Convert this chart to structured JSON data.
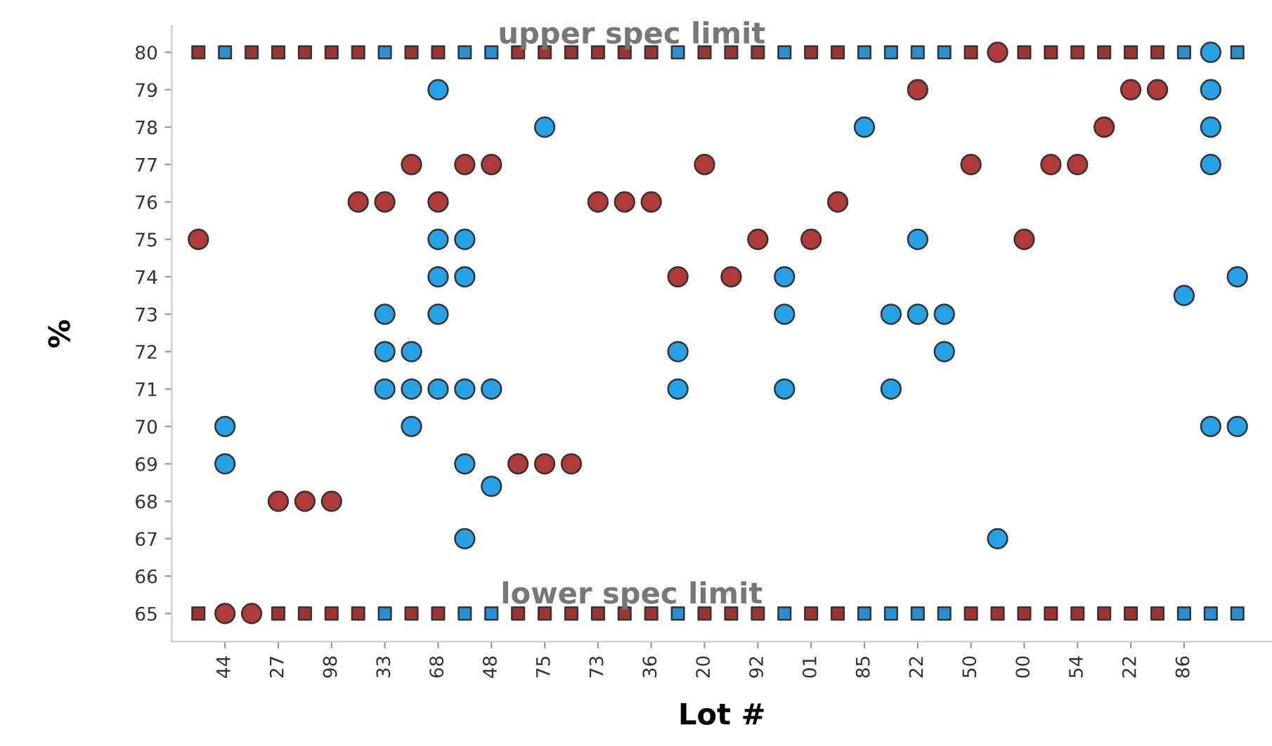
{
  "chart_data": {
    "type": "scatter",
    "xlabel": "Lot #",
    "ylabel": "%",
    "categories": [
      null,
      "44",
      null,
      "27",
      null,
      "98",
      null,
      "33",
      null,
      "68",
      null,
      "48",
      null,
      "75",
      null,
      "73",
      null,
      "36",
      null,
      "20",
      null,
      "92",
      null,
      "01",
      null,
      "85",
      null,
      "22",
      null,
      "50",
      null,
      "00",
      null,
      "54",
      null,
      "22",
      null,
      "86",
      null,
      null
    ],
    "ylim": [
      64.25,
      80.7
    ],
    "yticks": [
      65,
      66,
      67,
      68,
      69,
      70,
      71,
      72,
      73,
      74,
      75,
      76,
      77,
      78,
      79,
      80
    ],
    "grid": false,
    "annotations": [
      "upper spec limit",
      "lower spec limit"
    ],
    "series": [
      {
        "marker": "square",
        "values": [
          80,
          80,
          80,
          80,
          80,
          80,
          80,
          80,
          80,
          80,
          80,
          80,
          80,
          80,
          80,
          80,
          80,
          80,
          80,
          80,
          80,
          80,
          80,
          80,
          80,
          80,
          80,
          80,
          80,
          80,
          null,
          80,
          80,
          80,
          80,
          80,
          80,
          80,
          null,
          80
        ],
        "colors": [
          "#9e3535",
          "#2a8fd0",
          "#9e3535",
          "#9e3535",
          "#9e3535",
          "#9e3535",
          "#9e3535",
          "#2a8fd0",
          "#9e3535",
          "#9e3535",
          "#2a8fd0",
          "#2a8fd0",
          "#9e3535",
          "#9e3535",
          "#9e3535",
          "#9e3535",
          "#9e3535",
          "#9e3535",
          "#2a8fd0",
          "#9e3535",
          "#9e3535",
          "#9e3535",
          "#2a8fd0",
          "#9e3535",
          "#9e3535",
          "#2a8fd0",
          "#2a8fd0",
          "#2a8fd0",
          "#2a8fd0",
          "#9e3535",
          "#9e3535",
          "#9e3535",
          "#9e3535",
          "#9e3535",
          "#9e3535",
          "#9e3535",
          "#9e3535",
          "#2a8fd0",
          "#2a8fd0",
          "#2a8fd0"
        ]
      },
      {
        "marker": "square",
        "values": [
          65,
          null,
          null,
          65,
          65,
          65,
          65,
          65,
          65,
          65,
          65,
          65,
          65,
          65,
          65,
          65,
          65,
          65,
          65,
          65,
          65,
          65,
          65,
          65,
          65,
          65,
          65,
          65,
          65,
          65,
          65,
          65,
          65,
          65,
          65,
          65,
          65,
          65,
          65,
          65
        ],
        "colors": [
          "#9e3535",
          "#2a8fd0",
          "#9e3535",
          "#9e3535",
          "#9e3535",
          "#9e3535",
          "#9e3535",
          "#2a8fd0",
          "#9e3535",
          "#9e3535",
          "#2a8fd0",
          "#2a8fd0",
          "#9e3535",
          "#9e3535",
          "#9e3535",
          "#9e3535",
          "#9e3535",
          "#9e3535",
          "#2a8fd0",
          "#9e3535",
          "#9e3535",
          "#9e3535",
          "#2a8fd0",
          "#9e3535",
          "#9e3535",
          "#2a8fd0",
          "#2a8fd0",
          "#2a8fd0",
          "#2a8fd0",
          "#9e3535",
          "#9e3535",
          "#9e3535",
          "#9e3535",
          "#9e3535",
          "#9e3535",
          "#9e3535",
          "#9e3535",
          "#2a8fd0",
          "#2a8fd0",
          "#2a8fd0"
        ]
      },
      {
        "marker": "circle",
        "color": "#b03a3a",
        "values": [
          75,
          65,
          65,
          68,
          68,
          68,
          76,
          76,
          77,
          76,
          77,
          77,
          69,
          69,
          69,
          76,
          76,
          76,
          74,
          77,
          74,
          75,
          null,
          75,
          76,
          null,
          null,
          79,
          null,
          77,
          80,
          75,
          77,
          77,
          78,
          79,
          79,
          null,
          null,
          null
        ]
      },
      {
        "marker": "circle",
        "color": "#27a0e6",
        "values": [
          null,
          70,
          null,
          null,
          null,
          null,
          null,
          73,
          72,
          79,
          75,
          71,
          null,
          78,
          null,
          null,
          null,
          null,
          72,
          null,
          null,
          null,
          74,
          null,
          null,
          78,
          73,
          75,
          73,
          null,
          67,
          null,
          null,
          null,
          null,
          null,
          null,
          73.5,
          80,
          74
        ]
      },
      {
        "marker": "circle",
        "color": "#27a0e6",
        "values": [
          null,
          69,
          null,
          null,
          null,
          null,
          null,
          72,
          71,
          75,
          74,
          68.4,
          null,
          null,
          null,
          null,
          null,
          null,
          71,
          null,
          null,
          null,
          73,
          null,
          null,
          null,
          71,
          73,
          72,
          null,
          null,
          null,
          null,
          null,
          null,
          null,
          null,
          null,
          79,
          70
        ]
      },
      {
        "marker": "circle",
        "color": "#27a0e6",
        "values": [
          null,
          null,
          null,
          null,
          null,
          null,
          null,
          71,
          70,
          74,
          71,
          null,
          null,
          null,
          null,
          null,
          null,
          null,
          null,
          null,
          null,
          null,
          71,
          null,
          null,
          null,
          null,
          null,
          null,
          null,
          null,
          null,
          null,
          null,
          null,
          null,
          null,
          null,
          78,
          null
        ]
      },
      {
        "marker": "circle",
        "color": "#27a0e6",
        "values": [
          null,
          null,
          null,
          null,
          null,
          null,
          null,
          null,
          null,
          73,
          69,
          null,
          null,
          null,
          null,
          null,
          null,
          null,
          null,
          null,
          null,
          null,
          null,
          null,
          null,
          null,
          null,
          null,
          null,
          null,
          null,
          null,
          null,
          null,
          null,
          null,
          null,
          null,
          77,
          null
        ]
      },
      {
        "marker": "circle",
        "color": "#27a0e6",
        "values": [
          null,
          null,
          null,
          null,
          null,
          null,
          null,
          null,
          null,
          71,
          67,
          null,
          null,
          null,
          null,
          null,
          null,
          null,
          null,
          null,
          null,
          null,
          null,
          null,
          null,
          null,
          null,
          null,
          null,
          null,
          null,
          null,
          null,
          null,
          null,
          null,
          null,
          null,
          70,
          null
        ]
      }
    ]
  }
}
